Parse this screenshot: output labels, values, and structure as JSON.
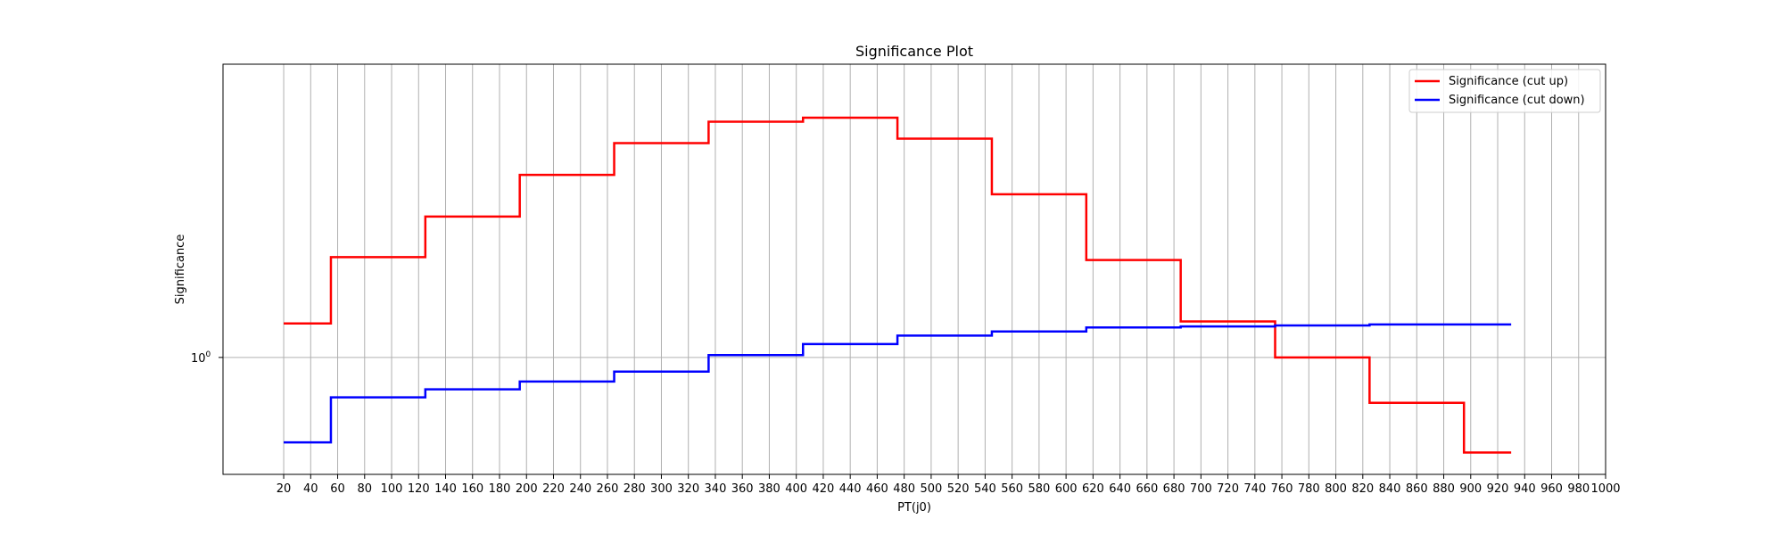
{
  "chart_data": {
    "type": "line",
    "title": "Significance Plot",
    "xlabel": "PT(j0)",
    "ylabel": "Significance",
    "y_scale": "log",
    "y_tick_label": "10",
    "y_tick_exponent": "0",
    "xlim": [
      -25,
      1000
    ],
    "ylim": [
      0.6,
      3.6
    ],
    "x_ticks": [
      20,
      40,
      60,
      80,
      100,
      120,
      140,
      160,
      180,
      200,
      220,
      240,
      260,
      280,
      300,
      320,
      340,
      360,
      380,
      400,
      420,
      440,
      460,
      480,
      500,
      520,
      540,
      560,
      580,
      600,
      620,
      640,
      660,
      680,
      700,
      720,
      740,
      760,
      780,
      800,
      820,
      840,
      860,
      880,
      900,
      920,
      940,
      960,
      980,
      1000
    ],
    "grid": true,
    "legend_position": "top-right",
    "series": [
      {
        "name": "Significance (cut up)",
        "color": "#ff0000",
        "step": "post",
        "x": [
          20,
          55,
          125,
          195,
          265,
          335,
          405,
          475,
          545,
          615,
          685,
          755,
          825,
          895,
          930
        ],
        "y": [
          1.16,
          1.55,
          1.85,
          2.22,
          2.55,
          2.8,
          2.85,
          2.6,
          2.04,
          1.53,
          1.17,
          1.0,
          0.82,
          0.66,
          0.66
        ]
      },
      {
        "name": "Significance (cut down)",
        "color": "#0000ff",
        "step": "post",
        "x": [
          20,
          55,
          125,
          195,
          265,
          335,
          405,
          475,
          545,
          615,
          685,
          755,
          825,
          930
        ],
        "y": [
          0.69,
          0.84,
          0.87,
          0.9,
          0.94,
          1.01,
          1.06,
          1.1,
          1.12,
          1.14,
          1.145,
          1.15,
          1.155,
          1.155
        ]
      }
    ]
  }
}
